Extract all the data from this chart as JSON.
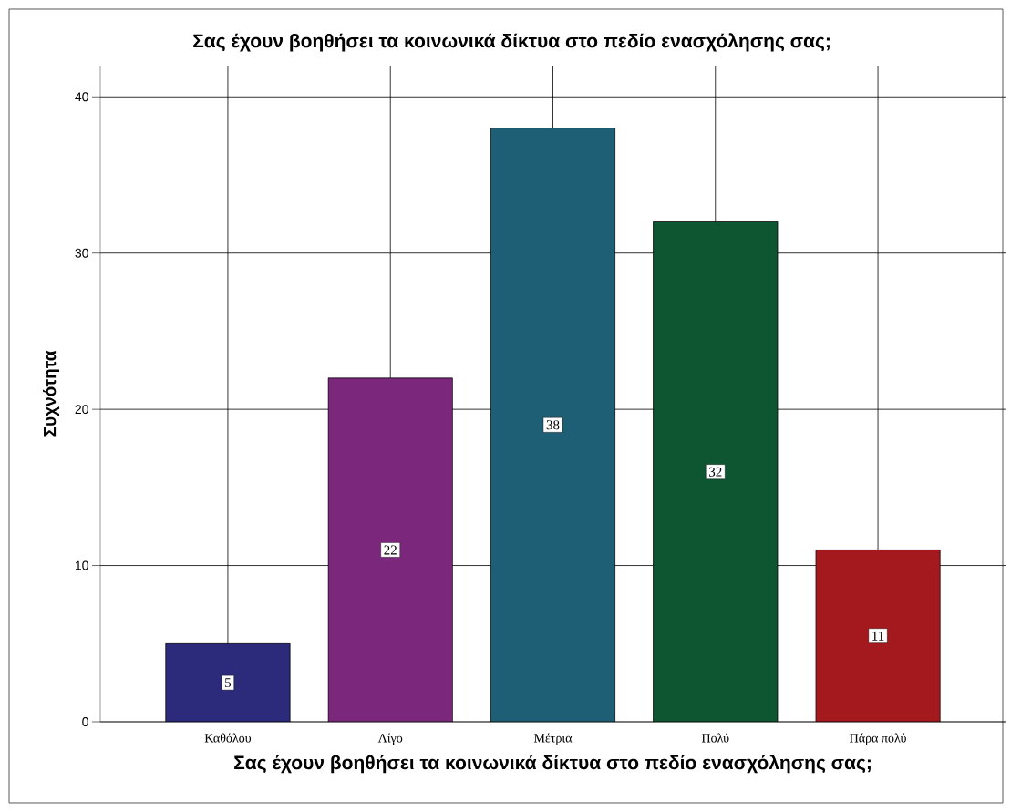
{
  "chart_data": {
    "type": "bar",
    "title": "Σας έχουν βοηθήσει τα κοινωνικά δίκτυα στο πεδίο ενασχόλησης σας;",
    "xlabel": "Σας έχουν βοηθήσει τα κοινωνικά δίκτυα στο πεδίο ενασχόλησης σας;",
    "ylabel": "Συχνότητα",
    "categories": [
      "Καθόλου",
      "Λίγο",
      "Μέτρια",
      "Πολύ",
      "Πάρα πολύ"
    ],
    "values": [
      5,
      22,
      38,
      32,
      11
    ],
    "colors": [
      "#2b2a7b",
      "#7b287c",
      "#1e5f75",
      "#0e5631",
      "#a3191d"
    ],
    "ylim": [
      0,
      42
    ],
    "yticks": [
      0,
      10,
      20,
      30,
      40
    ],
    "grid": true,
    "data_labels": true
  }
}
